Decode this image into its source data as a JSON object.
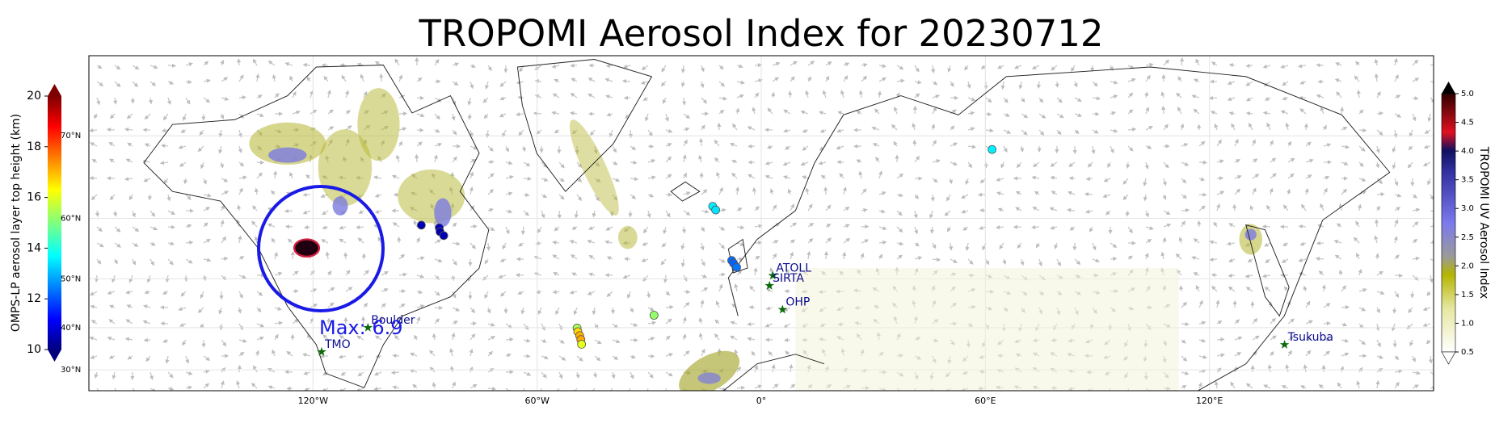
{
  "title": "TROPOMI Aerosol Index for 20230712",
  "map": {
    "xlim": [
      -180,
      180
    ],
    "ylim": [
      24.6,
      76.6
    ],
    "xticks": [
      {
        "value": -120,
        "label": "120°W"
      },
      {
        "value": -60,
        "label": "60°W"
      },
      {
        "value": 0,
        "label": "0°"
      },
      {
        "value": 60,
        "label": "60°E"
      },
      {
        "value": 120,
        "label": "120°E"
      }
    ],
    "yticks": [
      {
        "value": 30,
        "label": "30°N"
      },
      {
        "value": 40,
        "label": "40°N"
      },
      {
        "value": 50,
        "label": "50°N"
      },
      {
        "value": 60,
        "label": "60°N"
      },
      {
        "value": 70,
        "label": "70°N"
      }
    ],
    "grid": true
  },
  "height_colorbar": {
    "label": "OMPS-LP aerosol layer top height (km)",
    "lim": [
      10,
      20
    ],
    "ticks": [
      10,
      12,
      14,
      16,
      18,
      20
    ]
  },
  "ai_colorbar": {
    "label": "TROPOMI UV Aerosol Index",
    "lim": [
      0.5,
      5.0
    ],
    "ticks": [
      0.5,
      {
        "value": 1,
        "label": "1.0"
      },
      1.5,
      {
        "value": 2,
        "label": "2.0"
      },
      2.5,
      {
        "value": 3,
        "label": "3.0"
      },
      3.5,
      {
        "value": 4,
        "label": "4.0"
      },
      4.5,
      {
        "value": 5,
        "label": "5.0"
      }
    ]
  },
  "stations": [
    {
      "name": "Boulder",
      "lon": -105.3,
      "lat": 40.0
    },
    {
      "name": "TMO",
      "lon": -117.7,
      "lat": 34.4
    },
    {
      "name": "ATOLL",
      "lon": 3.1,
      "lat": 50.6
    },
    {
      "name": "SIRTA",
      "lon": 2.2,
      "lat": 48.7
    },
    {
      "name": "OHP",
      "lon": 5.7,
      "lat": 43.9
    },
    {
      "name": "Tsukuba",
      "lon": 140.1,
      "lat": 36.1
    }
  ],
  "omps_points": [
    {
      "lon": -91,
      "lat": 59.0,
      "height": 10.5
    },
    {
      "lon": -86.2,
      "lat": 58.6,
      "height": 10.6
    },
    {
      "lon": -86,
      "lat": 58.0,
      "height": 10.4
    },
    {
      "lon": -85,
      "lat": 57.4,
      "height": 10.5
    },
    {
      "lon": -13,
      "lat": 61.7,
      "height": 13.6
    },
    {
      "lon": -12.2,
      "lat": 61.2,
      "height": 13.5
    },
    {
      "lon": -7.9,
      "lat": 53.3,
      "height": 12.3
    },
    {
      "lon": -7.4,
      "lat": 52.8,
      "height": 12.2
    },
    {
      "lon": -6.6,
      "lat": 52.1,
      "height": 12.4
    },
    {
      "lon": 61.8,
      "lat": 68.6,
      "height": 13.6
    },
    {
      "lon": -28.7,
      "lat": 42.7,
      "height": 15.2
    },
    {
      "lon": -49.3,
      "lat": 39.9,
      "height": 15.4
    },
    {
      "lon": -49.1,
      "lat": 39.1,
      "height": 16.6
    },
    {
      "lon": -48.6,
      "lat": 38.2,
      "height": 17.0
    },
    {
      "lon": -48.3,
      "lat": 37.3,
      "height": 17.1
    },
    {
      "lon": -48.1,
      "lat": 36.2,
      "height": 16.0
    }
  ],
  "max_annotation": "Max: 6.9"
}
